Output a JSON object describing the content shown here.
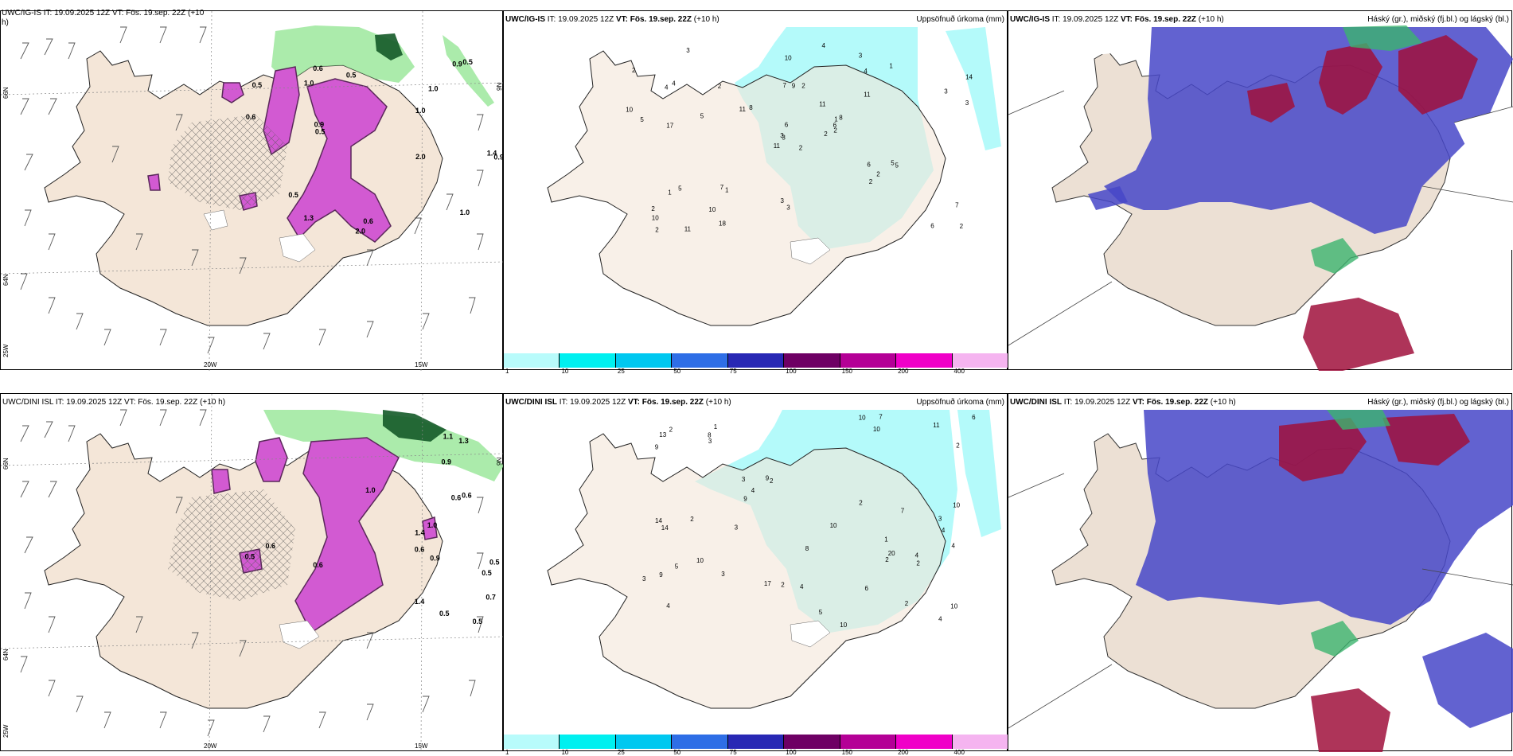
{
  "header_common": {
    "it_label": "IT:",
    "it_value": "19.09.2025 12Z",
    "vt_label": "VT:",
    "vt_value": "Fös. 19.sep. 22Z",
    "lead": "(+10 h)"
  },
  "rows": [
    {
      "model": "UWC/IG-IS",
      "left_header": {
        "text": "UWC/IG-IS IT: 19.09.2025 12Z VT: Fös. 19.sep. 22Z (+10",
        "wrap": "h)"
      },
      "mid_title_right": "Uppsöfnuð úrkoma (mm)",
      "right_title_right": "Háský (gr.), miðský (fj.bl.) og lágský (bl.)",
      "lat_labels": [
        "66N",
        "64N"
      ],
      "lon_labels": [
        "20W",
        "15W",
        "25W"
      ],
      "extra_lat": "9N",
      "precip_values": [
        "2",
        "4",
        "3",
        "2",
        "1",
        "1",
        "3",
        "2",
        "4",
        "2",
        "3",
        "2",
        "17",
        "14",
        "11",
        "11",
        "11",
        "7",
        "11",
        "5",
        "8",
        "10",
        "10",
        "9",
        "8",
        "5",
        "4",
        "10",
        "5",
        "6",
        "3",
        "3",
        "3",
        "6",
        "2",
        "1",
        "7",
        "6",
        "7",
        "5",
        "4",
        "11",
        "5",
        "2",
        "18",
        "10",
        "6",
        "2",
        "3",
        "2",
        "1",
        "3",
        "2",
        "2"
      ],
      "snow_values": [
        "0.5",
        "1.0",
        "1.0",
        "0.6",
        "0.9",
        "2.0",
        "2.0",
        "0.5",
        "0.5",
        "0.9",
        "1.4",
        "0.6",
        "1.0",
        "0.5",
        "0.6",
        "1.3",
        "0.9",
        "0.5",
        "1.0"
      ]
    },
    {
      "model": "UWC/DINI ISL",
      "left_header": {
        "text": "UWC/DINI ISL IT: 19.09.2025 12Z VT: Fös. 19.sep. 22Z (+10 h)",
        "wrap": ""
      },
      "mid_title_right": "Uppsöfnuð úrkoma (mm)",
      "right_title_right": "Háský (gr.), miðský (fj.bl.) og lágský (bl.)",
      "lat_labels": [
        "66N",
        "64N"
      ],
      "lon_labels": [
        "20W",
        "15W",
        "25W"
      ],
      "extra_lat": "9N",
      "precip_values": [
        "1",
        "4",
        "4",
        "1",
        "2",
        "2",
        "9",
        "10",
        "3",
        "10",
        "9",
        "14",
        "13",
        "10",
        "17",
        "10",
        "8",
        "10",
        "9",
        "10",
        "6",
        "11",
        "9",
        "4",
        "10",
        "8",
        "20",
        "14",
        "3",
        "7",
        "5",
        "6",
        "4",
        "3",
        "3",
        "2",
        "2",
        "2",
        "4",
        "5",
        "2",
        "7",
        "4",
        "2",
        "4",
        "3",
        "3",
        "2",
        "2"
      ],
      "snow_values": [
        "0.6",
        "0.5",
        "0.6",
        "0.5",
        "1.4",
        "0.9",
        "0.6",
        "1.0",
        "0.7",
        "0.5",
        "1.0",
        "1.4",
        "0.5",
        "0.9",
        "0.6",
        "0.5",
        "1.3",
        "0.6",
        "1.1"
      ]
    }
  ],
  "colorbar": {
    "ticks": [
      "1",
      "10",
      "25",
      "50",
      "75",
      "100",
      "150",
      "200",
      "400"
    ],
    "colors": [
      "#b8fbfb",
      "#00f0f0",
      "#00c8f0",
      "#2e6ee6",
      "#2828b4",
      "#6e0064",
      "#b40096",
      "#f000c8",
      "#f5b4f0"
    ]
  },
  "colors": {
    "land": "#f4e6d8",
    "precip": "#b4fafa",
    "snow_purple": "#d25ad2",
    "rain_green": "#96e696",
    "cloud_high_red": "#a0103c",
    "cloud_mid_green": "#3cb46e",
    "cloud_low_blue": "#4646c8",
    "cloud_land": "#ece0d4"
  }
}
